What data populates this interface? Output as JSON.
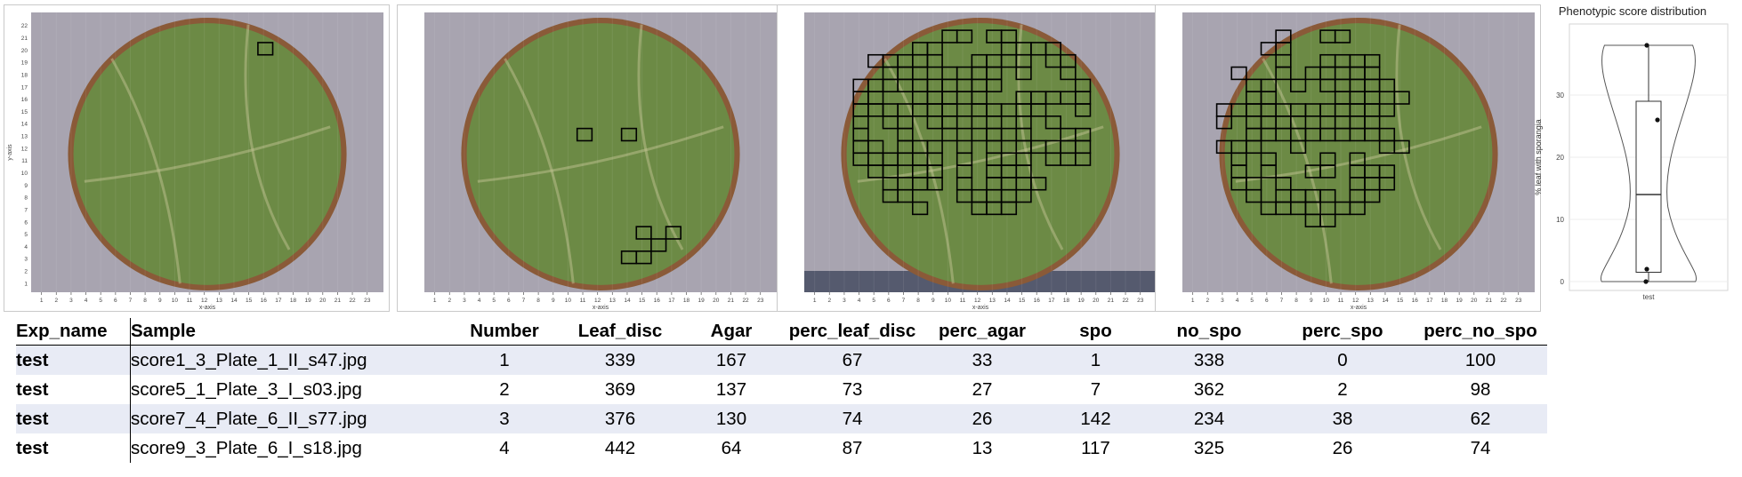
{
  "axis": {
    "x_label": "x-axis",
    "y_label": "y-axis",
    "x_ticks": [
      "1",
      "2",
      "3",
      "4",
      "5",
      "6",
      "7",
      "8",
      "9",
      "10",
      "11",
      "12",
      "13",
      "14",
      "15",
      "16",
      "17",
      "18",
      "19",
      "20",
      "21",
      "22",
      "23"
    ],
    "y_ticks": [
      "1",
      "2",
      "3",
      "4",
      "5",
      "6",
      "7",
      "8",
      "9",
      "10",
      "11",
      "12",
      "13",
      "14",
      "15",
      "16",
      "17",
      "18",
      "19",
      "20",
      "21",
      "22"
    ]
  },
  "colors": {
    "leaf": "#6c8a45",
    "leaf_dark": "#4d6a30",
    "rim": "#8a5a38",
    "bg": "#a8a4b0",
    "grid_square": "#000000",
    "table_alt": "#e8ebf5"
  },
  "plates": [
    {
      "id": "score1_3_Plate_1_II_s47",
      "squares": [
        [
          16,
          20
        ]
      ]
    },
    {
      "id": "score5_1_Plate_3_I_s03",
      "squares": [
        [
          11,
          13
        ],
        [
          14,
          13
        ],
        [
          15,
          5
        ],
        [
          17,
          5
        ],
        [
          16,
          4
        ],
        [
          14,
          3
        ],
        [
          15,
          3
        ]
      ]
    },
    {
      "id": "score7_4_Plate_6_II_s77",
      "squares": "dense"
    },
    {
      "id": "score9_3_Plate_6_I_s18",
      "squares": "dense"
    }
  ],
  "chart_data": {
    "type": "violin",
    "title": "Phenotypic score distribution",
    "xlabel": "",
    "ylabel": "% leaf with sporangia",
    "categories": [
      "test"
    ],
    "values": [
      0,
      2,
      26,
      38
    ],
    "box": {
      "min": 0,
      "q1": 1.5,
      "median": 14,
      "q3": 29,
      "max": 38
    },
    "ylim": [
      0,
      40
    ],
    "yticks": [
      0,
      10,
      20,
      30
    ],
    "grid": true
  },
  "table": {
    "headers": [
      "Exp_name",
      "Sample",
      "Number",
      "Leaf_disc",
      "Agar",
      "perc_leaf_disc",
      "perc_agar",
      "spo",
      "no_spo",
      "perc_spo",
      "perc_no_spo"
    ],
    "rows": [
      [
        "test",
        "score1_3_Plate_1_II_s47.jpg",
        "1",
        "339",
        "167",
        "67",
        "33",
        "1",
        "338",
        "0",
        "100"
      ],
      [
        "test",
        "score5_1_Plate_3_I_s03.jpg",
        "2",
        "369",
        "137",
        "73",
        "27",
        "7",
        "362",
        "2",
        "98"
      ],
      [
        "test",
        "score7_4_Plate_6_II_s77.jpg",
        "3",
        "376",
        "130",
        "74",
        "26",
        "142",
        "234",
        "38",
        "62"
      ],
      [
        "test",
        "score9_3_Plate_6_I_s18.jpg",
        "4",
        "442",
        "64",
        "87",
        "13",
        "117",
        "325",
        "26",
        "74"
      ]
    ]
  }
}
